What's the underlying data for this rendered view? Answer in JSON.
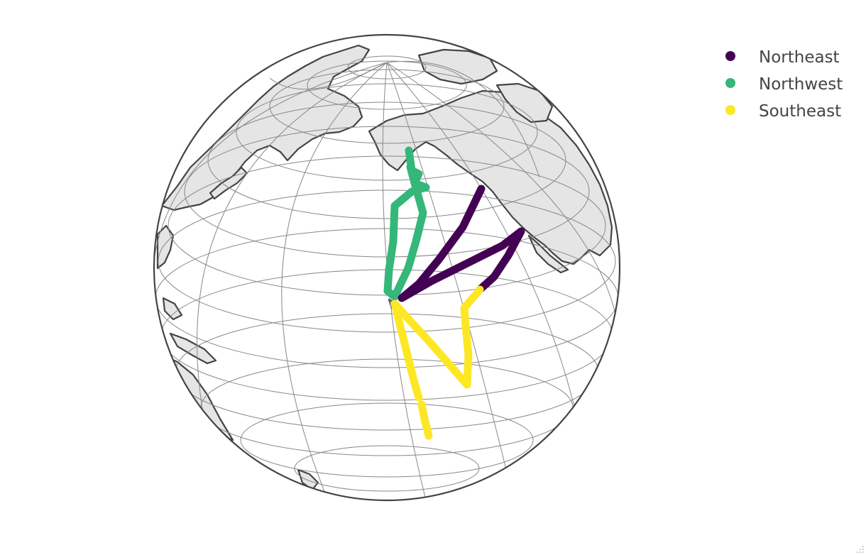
{
  "legend": {
    "items": [
      {
        "key": "northeast",
        "label": "Northeast",
        "color": "#440154"
      },
      {
        "key": "northwest",
        "label": "Northwest",
        "color": "#35b779"
      },
      {
        "key": "southeast",
        "label": "Southeast",
        "color": "#fde725"
      }
    ]
  },
  "map": {
    "projection": "orthographic",
    "ocean_color": "#ffffff",
    "land_color": "#e5e5e5",
    "coastline_color": "#444444",
    "graticule_color": "#888888"
  }
}
